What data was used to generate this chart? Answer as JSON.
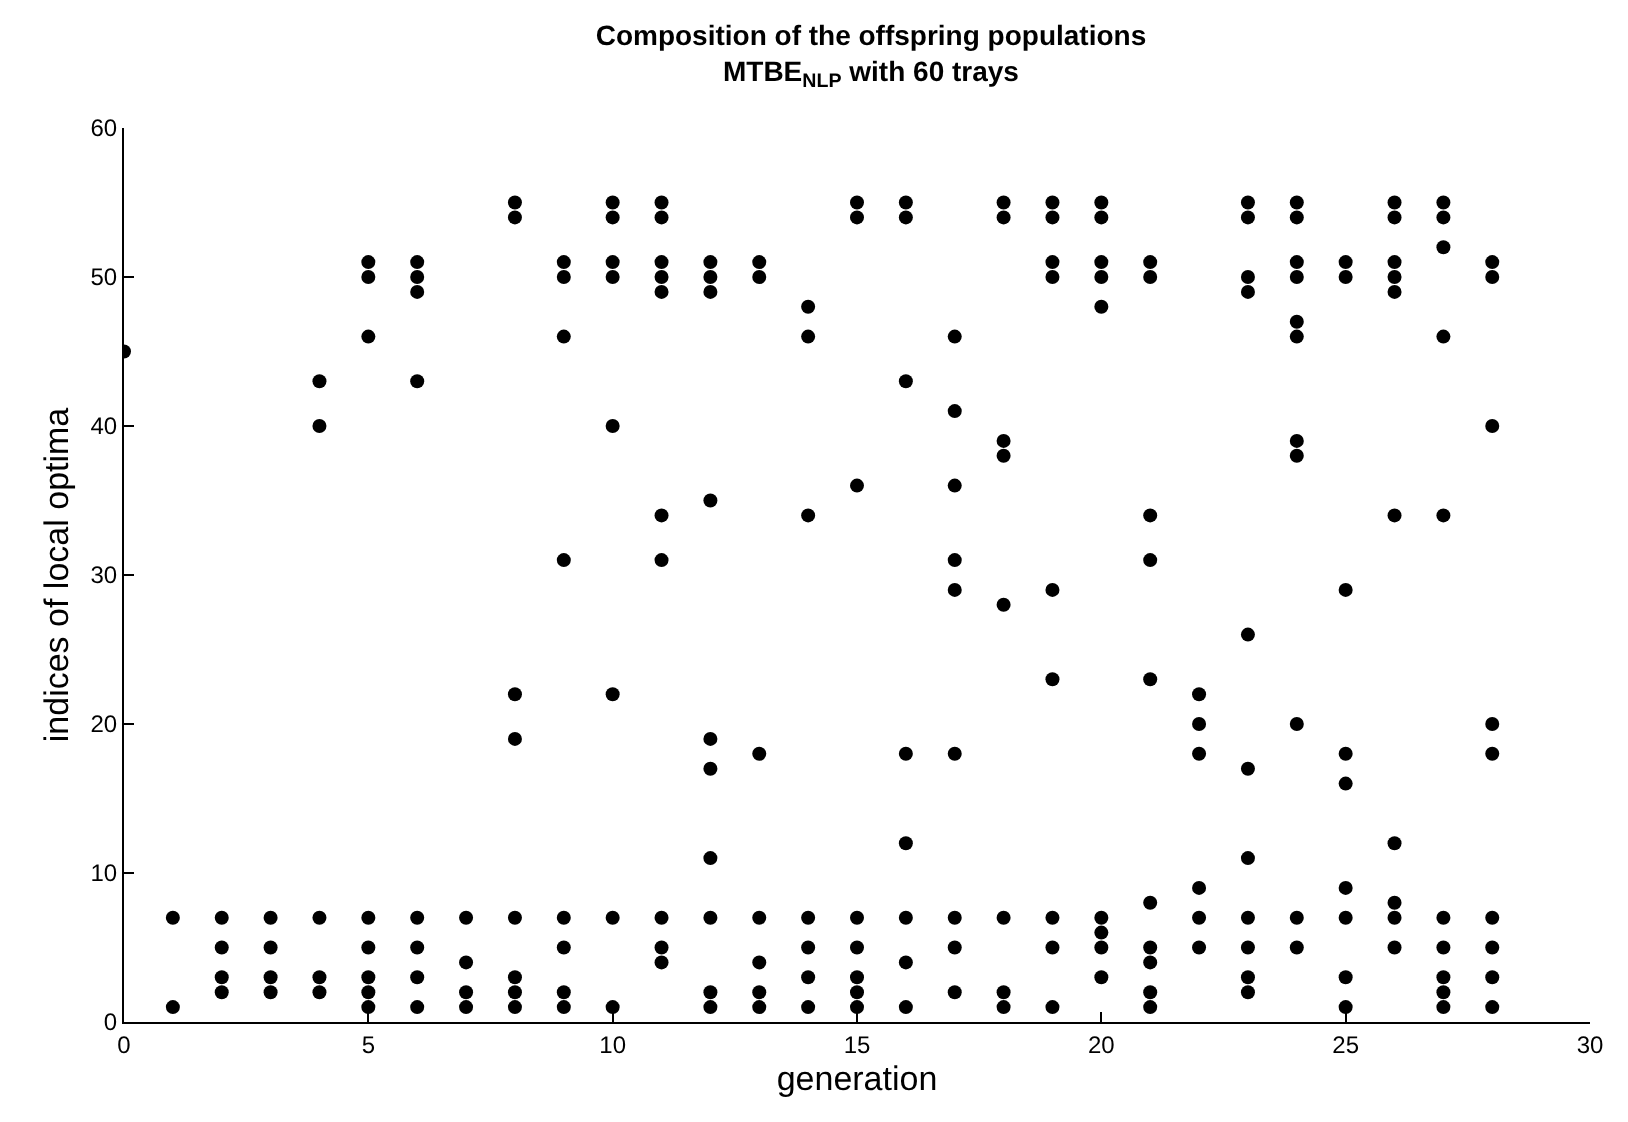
{
  "chart_data": {
    "type": "scatter",
    "title": "Composition of the offspring populations\nMTBE$_{NLP}$ with 60 trays",
    "xlabel": "generation",
    "ylabel": "indices of local optima",
    "x": [
      0,
      1,
      1,
      2,
      2,
      2,
      2,
      3,
      3,
      3,
      3,
      4,
      4,
      4,
      4,
      4,
      5,
      5,
      5,
      5,
      5,
      5,
      5,
      5,
      6,
      6,
      6,
      6,
      6,
      6,
      6,
      6,
      7,
      7,
      7,
      7,
      8,
      8,
      8,
      8,
      8,
      8,
      8,
      8,
      9,
      9,
      9,
      9,
      9,
      9,
      9,
      9,
      10,
      10,
      10,
      10,
      10,
      10,
      10,
      10,
      11,
      11,
      11,
      11,
      11,
      11,
      11,
      11,
      11,
      11,
      12,
      12,
      12,
      12,
      12,
      12,
      12,
      12,
      12,
      12,
      13,
      13,
      13,
      13,
      13,
      13,
      13,
      14,
      14,
      14,
      14,
      14,
      14,
      14,
      15,
      15,
      15,
      15,
      15,
      15,
      15,
      15,
      16,
      16,
      16,
      16,
      16,
      16,
      16,
      16,
      17,
      17,
      17,
      17,
      17,
      17,
      17,
      17,
      17,
      18,
      18,
      18,
      18,
      18,
      18,
      18,
      18,
      19,
      19,
      19,
      19,
      19,
      19,
      19,
      19,
      19,
      20,
      20,
      20,
      20,
      20,
      20,
      20,
      20,
      20,
      21,
      21,
      21,
      21,
      21,
      21,
      21,
      21,
      21,
      21,
      22,
      22,
      22,
      22,
      22,
      22,
      23,
      23,
      23,
      23,
      23,
      23,
      23,
      23,
      23,
      23,
      23,
      24,
      24,
      24,
      24,
      24,
      24,
      24,
      24,
      24,
      24,
      24,
      25,
      25,
      25,
      25,
      25,
      25,
      25,
      25,
      25,
      26,
      26,
      26,
      26,
      26,
      26,
      26,
      26,
      26,
      26,
      27,
      27,
      27,
      27,
      27,
      27,
      27,
      27,
      27,
      27,
      28,
      28,
      28,
      28,
      28,
      28,
      28,
      28,
      28
    ],
    "values": [
      45,
      7,
      1,
      7,
      5,
      3,
      2,
      7,
      5,
      3,
      2,
      43,
      40,
      7,
      3,
      2,
      51,
      50,
      46,
      7,
      5,
      3,
      2,
      1,
      51,
      50,
      49,
      43,
      7,
      5,
      3,
      1,
      7,
      4,
      2,
      1,
      55,
      54,
      22,
      19,
      7,
      3,
      2,
      1,
      51,
      50,
      46,
      31,
      7,
      5,
      2,
      1,
      55,
      54,
      51,
      50,
      40,
      22,
      7,
      1,
      55,
      54,
      51,
      50,
      49,
      34,
      31,
      7,
      5,
      4,
      51,
      50,
      49,
      35,
      19,
      17,
      11,
      7,
      2,
      1,
      51,
      50,
      18,
      7,
      4,
      2,
      1,
      48,
      46,
      34,
      7,
      5,
      3,
      1,
      55,
      54,
      36,
      7,
      5,
      3,
      2,
      1,
      55,
      54,
      43,
      18,
      12,
      7,
      4,
      1,
      46,
      41,
      36,
      31,
      29,
      18,
      7,
      5,
      2,
      55,
      54,
      39,
      38,
      28,
      7,
      2,
      1,
      55,
      54,
      51,
      50,
      29,
      23,
      7,
      5,
      1,
      55,
      54,
      51,
      50,
      48,
      7,
      6,
      5,
      3,
      51,
      50,
      34,
      31,
      23,
      8,
      5,
      4,
      2,
      1,
      22,
      20,
      18,
      9,
      7,
      5,
      55,
      54,
      50,
      49,
      26,
      17,
      11,
      7,
      5,
      3,
      2,
      55,
      54,
      51,
      50,
      47,
      46,
      39,
      38,
      20,
      7,
      5,
      51,
      50,
      29,
      18,
      16,
      9,
      7,
      3,
      1,
      55,
      54,
      51,
      50,
      49,
      34,
      12,
      8,
      7,
      5,
      55,
      54,
      52,
      46,
      34,
      7,
      5,
      3,
      2,
      1,
      51,
      50,
      40,
      20,
      18,
      7,
      5,
      3,
      1
    ],
    "color": "#000000",
    "marker": "circle",
    "xlim": [
      0,
      30
    ],
    "xticks": [
      0,
      5,
      10,
      15,
      20,
      25,
      30
    ],
    "ylim": [
      0,
      60
    ],
    "yticks": [
      0,
      10,
      20,
      30,
      40,
      50,
      60
    ]
  }
}
